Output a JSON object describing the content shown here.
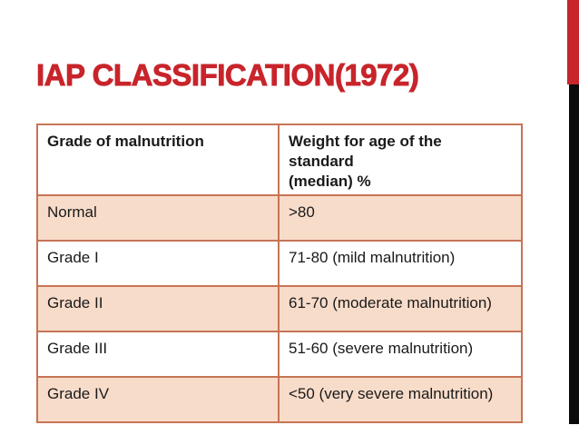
{
  "slide": {
    "title": "IAP CLASSIFICATION(1972)",
    "accent_red_color": "#C8252D",
    "accent_black_color": "#0B0B0B",
    "title_color": "#C8242B"
  },
  "table": {
    "border_color": "#C67455",
    "shaded_row_color": "#F8DCCA",
    "headers": {
      "col1": "Grade of malnutrition",
      "col2": "Weight for age of the\nstandard\n(median) %"
    },
    "rows": [
      {
        "grade": "Normal",
        "weight": ">80"
      },
      {
        "grade": "Grade I",
        "weight": "71-80 (mild malnutrition)"
      },
      {
        "grade": "Grade II",
        "weight": "61-70 (moderate malnutrition)"
      },
      {
        "grade": "Grade III",
        "weight": "51-60 (severe malnutrition)"
      },
      {
        "grade": "Grade IV",
        "weight": "<50 (very severe malnutrition)"
      }
    ]
  },
  "chart_data": {
    "type": "table",
    "title": "IAP CLASSIFICATION(1972)",
    "columns": [
      "Grade of malnutrition",
      "Weight for age of the standard (median) %"
    ],
    "rows": [
      [
        "Normal",
        ">80"
      ],
      [
        "Grade I",
        "71-80 (mild malnutrition)"
      ],
      [
        "Grade II",
        "61-70 (moderate malnutrition)"
      ],
      [
        "Grade III",
        "51-60 (severe malnutrition)"
      ],
      [
        "Grade IV",
        "<50 (very severe malnutrition)"
      ]
    ]
  }
}
